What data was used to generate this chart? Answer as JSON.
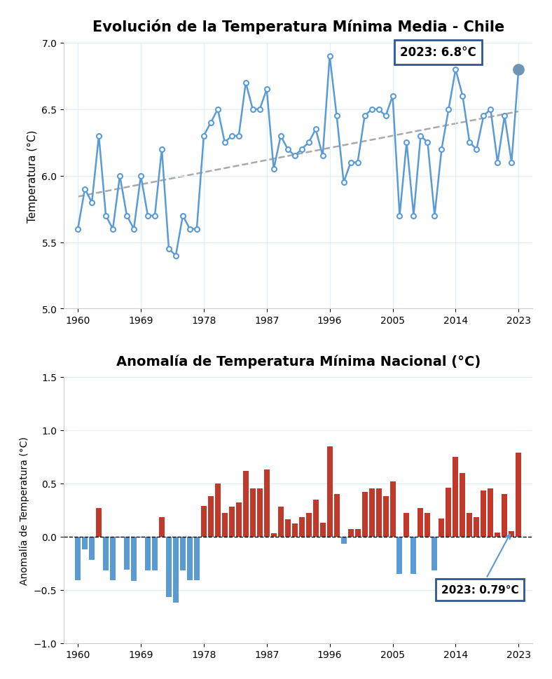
{
  "title1": "Evolución de la Temperatura Mínima Media - Chile",
  "title2": "Anomalía de Temperatura Mínima Nacional (°C)",
  "ylabel1": "Temperatura (°C)",
  "ylabel2": "Anomalía de Temperatura (°C)",
  "years": [
    1960,
    1961,
    1962,
    1963,
    1964,
    1965,
    1966,
    1967,
    1968,
    1969,
    1970,
    1971,
    1972,
    1973,
    1974,
    1975,
    1976,
    1977,
    1978,
    1979,
    1980,
    1981,
    1982,
    1983,
    1984,
    1985,
    1986,
    1987,
    1988,
    1989,
    1990,
    1991,
    1992,
    1993,
    1994,
    1995,
    1996,
    1997,
    1998,
    1999,
    2000,
    2001,
    2002,
    2003,
    2004,
    2005,
    2006,
    2007,
    2008,
    2009,
    2010,
    2011,
    2012,
    2013,
    2014,
    2015,
    2016,
    2017,
    2018,
    2019,
    2020,
    2021,
    2022,
    2023
  ],
  "temps": [
    5.6,
    5.9,
    5.8,
    6.3,
    5.7,
    5.6,
    6.0,
    5.7,
    5.6,
    6.0,
    5.7,
    5.7,
    6.2,
    5.45,
    5.4,
    5.7,
    5.6,
    5.6,
    6.3,
    6.4,
    6.5,
    6.25,
    6.3,
    6.3,
    6.7,
    6.5,
    6.5,
    6.65,
    6.05,
    6.3,
    6.2,
    6.15,
    6.2,
    6.25,
    6.35,
    6.15,
    6.9,
    6.45,
    5.95,
    6.1,
    6.1,
    6.45,
    6.5,
    6.5,
    6.45,
    6.6,
    5.7,
    6.25,
    5.7,
    6.3,
    6.25,
    5.7,
    6.2,
    6.5,
    6.8,
    6.6,
    6.25,
    6.2,
    6.45,
    6.5,
    6.1,
    6.45,
    6.1,
    6.8
  ],
  "anomalies": [
    -0.41,
    -0.12,
    -0.22,
    0.27,
    -0.32,
    -0.41,
    -0.01,
    -0.31,
    -0.42,
    -0.01,
    -0.32,
    -0.32,
    0.18,
    -0.57,
    -0.62,
    -0.32,
    -0.41,
    -0.41,
    0.29,
    0.38,
    0.5,
    0.22,
    0.28,
    0.32,
    0.62,
    0.45,
    0.45,
    0.63,
    0.03,
    0.28,
    0.16,
    0.12,
    0.18,
    0.22,
    0.35,
    0.13,
    0.85,
    0.4,
    -0.07,
    0.07,
    0.07,
    0.42,
    0.45,
    0.45,
    0.38,
    0.52,
    -0.35,
    0.22,
    -0.35,
    0.27,
    0.22,
    -0.32,
    0.17,
    0.46,
    0.75,
    0.6,
    0.22,
    0.18,
    0.43,
    0.45,
    0.04,
    0.4,
    0.05,
    0.79
  ],
  "ylim1": [
    5.0,
    7.0
  ],
  "ylim2": [
    -1.0,
    1.5
  ],
  "yticks1": [
    5.0,
    5.5,
    6.0,
    6.5,
    7.0
  ],
  "yticks2": [
    -1.0,
    -0.5,
    0.0,
    0.5,
    1.0,
    1.5
  ],
  "xticks": [
    1960,
    1969,
    1978,
    1987,
    1996,
    2005,
    2014,
    2023
  ],
  "line_color": "#5B9BD5",
  "marker_facecolor": "white",
  "marker_edgecolor": "#5B9BD5",
  "marker_last_color": "#7094B5",
  "trend_color": "#AAAAAA",
  "bar_color_pos": "#C0392B",
  "bar_color_neg": "#5B9BD5",
  "annotation_2023_temp": "2023: 6.8°C",
  "annotation_2023_anom": "2023: 0.79°C",
  "bg_color": "white",
  "grid_color": "#DDEEFF",
  "ann_box_edge": "#2F5597",
  "xlim": [
    1958,
    2025
  ]
}
